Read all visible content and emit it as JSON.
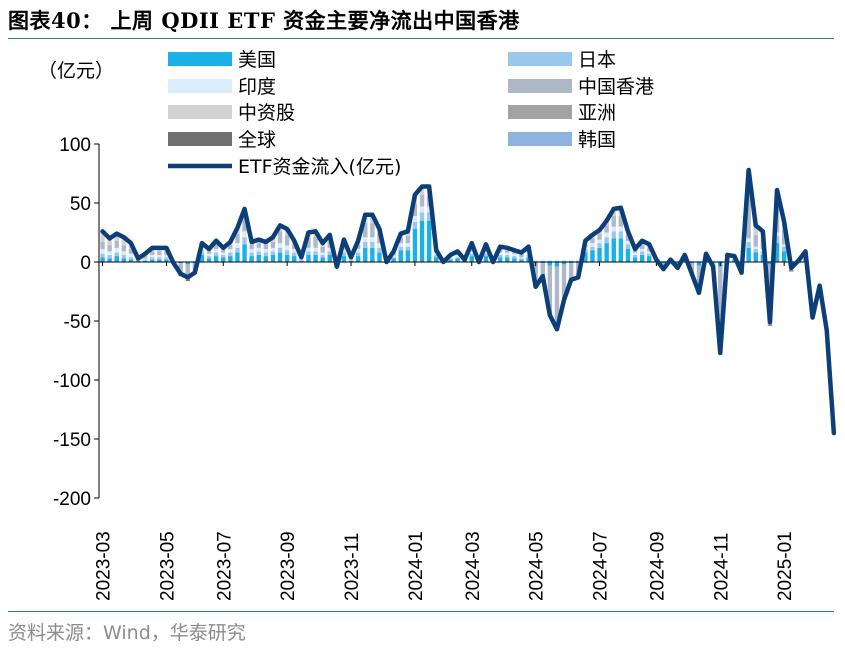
{
  "header": {
    "title": "图表40：  上周 QDII ETF 资金主要净流出中国香港"
  },
  "footer": {
    "source": "资料来源：Wind，华泰研究"
  },
  "chart_data": {
    "type": "bar",
    "unit_label": "（亿元）",
    "ylim": [
      -200,
      100
    ],
    "yticks": [
      100,
      50,
      0,
      -50,
      -100,
      -150,
      -200
    ],
    "xtick_labels": [
      "2023-03",
      "2023-05",
      "2023-07",
      "2023-09",
      "2023-11",
      "2024-01",
      "2024-03",
      "2024-05",
      "2024-07",
      "2024-09",
      "2024-11",
      "2025-01"
    ],
    "stack_order": [
      "US",
      "JP",
      "IN",
      "HK",
      "CN",
      "ASIA",
      "GLOBAL",
      "KR"
    ],
    "colors": {
      "US": "#1ab0e8",
      "JP": "#9ac8ec",
      "IN": "#dcecf8",
      "HK": "#aeb8c8",
      "CN": "#d2d2d2",
      "ASIA": "#a3a3a3",
      "GLOBAL": "#6f6f6f",
      "KR": "#8fb3e0",
      "line": "#0c3e78"
    },
    "legend": [
      {
        "key": "US",
        "label": "美国"
      },
      {
        "key": "JP",
        "label": "日本"
      },
      {
        "key": "IN",
        "label": "印度"
      },
      {
        "key": "HK",
        "label": "中国香港"
      },
      {
        "key": "CN",
        "label": "中资股"
      },
      {
        "key": "ASIA",
        "label": "亚洲"
      },
      {
        "key": "GLOBAL",
        "label": "全球"
      },
      {
        "key": "KR",
        "label": "韩国"
      },
      {
        "key": "line",
        "label": "ETF资金流入(亿元)"
      }
    ],
    "weeks": 100,
    "line_series": {
      "name": "ETF资金流入(亿元)",
      "values": [
        26,
        20,
        24,
        21,
        16,
        3,
        7,
        12,
        12,
        12,
        -1,
        -10,
        -13,
        -9,
        16,
        11,
        18,
        12,
        17,
        29,
        45,
        17,
        19,
        17,
        21,
        31,
        28,
        18,
        4,
        25,
        26,
        16,
        23,
        -4,
        19,
        4,
        18,
        40,
        40,
        28,
        0,
        9,
        24,
        26,
        57,
        64,
        64,
        10,
        0,
        6,
        9,
        2,
        16,
        0,
        15,
        0,
        13,
        12,
        10,
        8,
        13,
        -21,
        -12,
        -45,
        -57,
        -32,
        -15,
        -13,
        18,
        23,
        27,
        35,
        45,
        46,
        26,
        11,
        18,
        15,
        2,
        -6,
        2,
        -5,
        6,
        -10,
        -26,
        7,
        -4,
        -77,
        6,
        5,
        -9,
        78,
        31,
        26,
        -51,
        61,
        34,
        -5,
        1,
        9,
        -47,
        -20,
        -58,
        -145
      ]
    },
    "series": [
      {
        "key": "US",
        "values": [
          4,
          3,
          5,
          3,
          2,
          1,
          1,
          2,
          2,
          2,
          0,
          -1,
          -2,
          -1,
          6,
          3,
          5,
          4,
          5,
          8,
          15,
          5,
          6,
          5,
          6,
          8,
          6,
          5,
          1,
          6,
          6,
          4,
          6,
          0,
          5,
          1,
          5,
          12,
          12,
          8,
          0,
          3,
          10,
          10,
          28,
          35,
          35,
          4,
          0,
          2,
          3,
          1,
          5,
          0,
          5,
          0,
          4,
          4,
          3,
          2,
          4,
          0,
          -1,
          -3,
          -4,
          -2,
          -1,
          -1,
          8,
          10,
          12,
          16,
          20,
          20,
          11,
          4,
          6,
          5,
          1,
          -1,
          1,
          0,
          2,
          -1,
          -3,
          2,
          0,
          -4,
          3,
          2,
          0,
          12,
          8,
          6,
          -2,
          16,
          9,
          0,
          0,
          3,
          -3,
          -1,
          -4,
          -10
        ]
      },
      {
        "key": "JP",
        "values": [
          3,
          3,
          3,
          3,
          2,
          1,
          1,
          2,
          2,
          2,
          1,
          0,
          0,
          0,
          3,
          2,
          3,
          2,
          3,
          4,
          6,
          3,
          3,
          3,
          3,
          4,
          4,
          3,
          1,
          3,
          3,
          2,
          3,
          0,
          3,
          1,
          3,
          5,
          5,
          4,
          0,
          1,
          3,
          3,
          6,
          7,
          7,
          2,
          0,
          1,
          1,
          0,
          2,
          0,
          2,
          0,
          2,
          2,
          2,
          1,
          2,
          1,
          1,
          1,
          1,
          1,
          1,
          1,
          3,
          3,
          4,
          5,
          6,
          6,
          4,
          2,
          3,
          2,
          1,
          0,
          1,
          0,
          1,
          0,
          0,
          1,
          0,
          0,
          1,
          1,
          0,
          5,
          3,
          3,
          0,
          6,
          4,
          0,
          0,
          1,
          0,
          0,
          0,
          0
        ]
      },
      {
        "key": "IN",
        "values": [
          4,
          3,
          4,
          3,
          3,
          1,
          1,
          2,
          2,
          2,
          1,
          0,
          0,
          1,
          3,
          2,
          3,
          2,
          3,
          4,
          5,
          3,
          3,
          3,
          3,
          4,
          4,
          3,
          1,
          3,
          3,
          2,
          3,
          1,
          3,
          1,
          3,
          4,
          4,
          4,
          1,
          2,
          3,
          3,
          5,
          5,
          5,
          2,
          1,
          1,
          2,
          1,
          2,
          1,
          2,
          1,
          2,
          2,
          2,
          1,
          2,
          1,
          1,
          1,
          1,
          1,
          1,
          1,
          2,
          3,
          3,
          4,
          4,
          4,
          3,
          2,
          2,
          2,
          1,
          1,
          1,
          1,
          1,
          1,
          1,
          1,
          1,
          1,
          1,
          1,
          1,
          3,
          2,
          2,
          1,
          3,
          2,
          1,
          1,
          1,
          1,
          1,
          1,
          1
        ]
      },
      {
        "key": "HK",
        "values": [
          6,
          5,
          6,
          5,
          4,
          1,
          2,
          3,
          3,
          3,
          -1,
          -8,
          -10,
          -7,
          3,
          2,
          4,
          2,
          4,
          8,
          12,
          4,
          4,
          4,
          5,
          10,
          9,
          4,
          1,
          8,
          9,
          5,
          7,
          -3,
          5,
          1,
          4,
          12,
          12,
          8,
          -1,
          2,
          5,
          6,
          10,
          10,
          10,
          1,
          -1,
          1,
          2,
          0,
          4,
          -1,
          3,
          -1,
          3,
          2,
          2,
          2,
          3,
          -20,
          -11,
          -42,
          -53,
          -30,
          -14,
          -12,
          2,
          4,
          5,
          6,
          9,
          9,
          5,
          2,
          4,
          3,
          0,
          -6,
          -1,
          -6,
          1,
          -10,
          -24,
          2,
          -5,
          -73,
          1,
          1,
          -10,
          40,
          10,
          8,
          -50,
          24,
          12,
          -7,
          -1,
          2,
          -44,
          -19,
          -54,
          -135
        ]
      },
      {
        "key": "CN",
        "values": [
          8,
          5,
          5,
          6,
          4,
          1,
          1,
          3,
          3,
          3,
          0,
          -1,
          -2,
          -1,
          2,
          2,
          3,
          1,
          2,
          5,
          6,
          2,
          2,
          2,
          3,
          4,
          4,
          2,
          0,
          4,
          4,
          2,
          3,
          -2,
          2,
          0,
          2,
          6,
          6,
          3,
          0,
          1,
          2,
          3,
          7,
          6,
          6,
          1,
          0,
          1,
          1,
          0,
          2,
          0,
          2,
          0,
          1,
          1,
          1,
          1,
          1,
          -1,
          -1,
          -1,
          -1,
          -1,
          -1,
          -1,
          2,
          2,
          2,
          3,
          4,
          4,
          2,
          1,
          2,
          2,
          0,
          -1,
          0,
          0,
          1,
          -1,
          -1,
          1,
          0,
          -2,
          0,
          0,
          -1,
          15,
          6,
          5,
          -1,
          10,
          6,
          0,
          0,
          1,
          -1,
          -1,
          -2,
          -5
        ]
      },
      {
        "key": "ASIA",
        "values": [
          1,
          0,
          1,
          1,
          0,
          0,
          0,
          0,
          0,
          0,
          0,
          -1,
          -1,
          0,
          0,
          0,
          0,
          0,
          0,
          0,
          1,
          0,
          0,
          0,
          0,
          0,
          0,
          0,
          0,
          0,
          0,
          0,
          0,
          0,
          0,
          0,
          0,
          0,
          0,
          0,
          0,
          0,
          0,
          0,
          0,
          0,
          0,
          0,
          0,
          0,
          0,
          0,
          0,
          0,
          0,
          0,
          0,
          0,
          0,
          0,
          0,
          0,
          0,
          0,
          0,
          0,
          0,
          0,
          0,
          0,
          0,
          0,
          0,
          0,
          0,
          0,
          0,
          0,
          0,
          0,
          0,
          0,
          0,
          0,
          0,
          0,
          0,
          0,
          0,
          0,
          0,
          1,
          1,
          1,
          0,
          1,
          1,
          0,
          0,
          0,
          0,
          0,
          0,
          0
        ]
      },
      {
        "key": "GLOBAL",
        "values": [
          0,
          0,
          0,
          0,
          0,
          0,
          0,
          0,
          0,
          0,
          0,
          -1,
          -1,
          -1,
          0,
          0,
          0,
          0,
          0,
          0,
          0,
          0,
          0,
          0,
          0,
          0,
          0,
          0,
          0,
          0,
          0,
          0,
          0,
          0,
          0,
          0,
          0,
          0,
          0,
          0,
          0,
          0,
          0,
          0,
          0,
          0,
          0,
          0,
          0,
          0,
          0,
          0,
          0,
          0,
          0,
          0,
          0,
          0,
          0,
          0,
          0,
          0,
          0,
          0,
          0,
          0,
          0,
          0,
          0,
          0,
          0,
          0,
          0,
          0,
          0,
          0,
          0,
          0,
          0,
          0,
          0,
          0,
          0,
          0,
          0,
          0,
          0,
          0,
          0,
          0,
          0,
          1,
          1,
          1,
          -1,
          1,
          1,
          -1,
          0,
          0,
          0,
          0,
          0,
          -2
        ]
      },
      {
        "key": "KR",
        "values": [
          0,
          0,
          0,
          0,
          0,
          0,
          0,
          0,
          0,
          0,
          0,
          0,
          0,
          0,
          0,
          0,
          0,
          0,
          0,
          0,
          0,
          0,
          0,
          0,
          0,
          0,
          0,
          0,
          0,
          0,
          0,
          0,
          0,
          0,
          0,
          0,
          0,
          0,
          0,
          0,
          0,
          0,
          0,
          0,
          0,
          0,
          0,
          0,
          0,
          0,
          0,
          0,
          0,
          0,
          0,
          0,
          0,
          0,
          0,
          0,
          0,
          0,
          0,
          0,
          0,
          0,
          0,
          0,
          0,
          0,
          0,
          0,
          0,
          0,
          0,
          0,
          0,
          0,
          0,
          0,
          0,
          0,
          0,
          0,
          0,
          0,
          0,
          0,
          0,
          0,
          0,
          0,
          0,
          0,
          0,
          0,
          0,
          0,
          0,
          1,
          0,
          0,
          0,
          -1
        ]
      }
    ]
  }
}
